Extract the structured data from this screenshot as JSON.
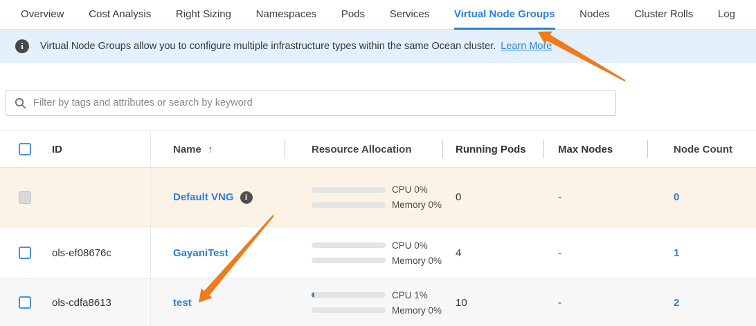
{
  "tabs": [
    {
      "label": "Overview",
      "active": false
    },
    {
      "label": "Cost Analysis",
      "active": false
    },
    {
      "label": "Right Sizing",
      "active": false
    },
    {
      "label": "Namespaces",
      "active": false
    },
    {
      "label": "Pods",
      "active": false
    },
    {
      "label": "Services",
      "active": false
    },
    {
      "label": "Virtual Node Groups",
      "active": true
    },
    {
      "label": "Nodes",
      "active": false
    },
    {
      "label": "Cluster Rolls",
      "active": false
    },
    {
      "label": "Log",
      "active": false
    }
  ],
  "banner": {
    "message": "Virtual Node Groups allow you to configure multiple infrastructure types within the same Ocean cluster.",
    "link_label": "Learn More"
  },
  "search": {
    "placeholder": "Filter by tags and attributes or search by keyword"
  },
  "icons": {
    "info": "i",
    "sort_ascending": "↑",
    "search": "magnifier"
  },
  "table": {
    "columns": {
      "id": "ID",
      "name": "Name",
      "resource": "Resource Allocation",
      "running": "Running Pods",
      "max": "Max Nodes",
      "count": "Node Count"
    },
    "rows": [
      {
        "id": "",
        "name": "Default VNG",
        "has_info_icon": true,
        "cpu_label": "CPU 0%",
        "cpu_pct": 0,
        "mem_label": "Memory 0%",
        "mem_pct": 0,
        "running_pods": "0",
        "max_nodes": "-",
        "node_count": "0",
        "highlight": "beige"
      },
      {
        "id": "ols-ef08676c",
        "name": "GayaniTest",
        "has_info_icon": false,
        "cpu_label": "CPU 0%",
        "cpu_pct": 0,
        "mem_label": "Memory 0%",
        "mem_pct": 0,
        "running_pods": "4",
        "max_nodes": "-",
        "node_count": "1",
        "highlight": "none"
      },
      {
        "id": "ols-cdfa8613",
        "name": "test",
        "has_info_icon": false,
        "cpu_label": "CPU 1%",
        "cpu_pct": 1,
        "mem_label": "Memory 0%",
        "mem_pct": 0,
        "running_pods": "10",
        "max_nodes": "-",
        "node_count": "2",
        "highlight": "gray"
      }
    ]
  },
  "annotations": [
    {
      "type": "arrow",
      "color": "#ee7b1c",
      "points_to": "virtual-node-groups-tab"
    },
    {
      "type": "arrow",
      "color": "#ee7b1c",
      "points_to": "test-name-link"
    }
  ],
  "colors": {
    "accent_blue": "#2b7fdb",
    "arrow_orange": "#ee7b1c",
    "banner_bg": "#e4f1fc",
    "highlight_row_bg": "#fcf3e6",
    "hover_row_bg": "#f7f7f8",
    "cpu_fill_blue": "#3c87d0"
  }
}
